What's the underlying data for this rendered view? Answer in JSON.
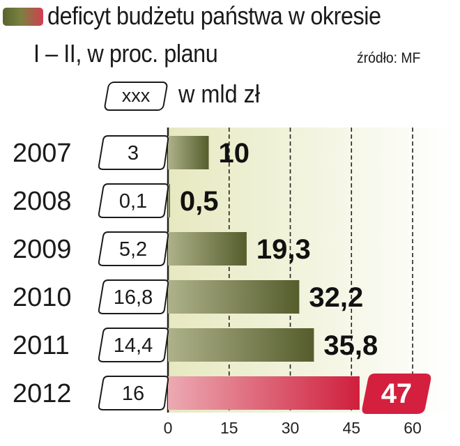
{
  "title_line1": "deficyt budżetu państwa w okresie",
  "title_line2": "I – II, w proc. planu",
  "source": "źródło: MF",
  "legend": {
    "box_label": "xxx",
    "unit": "w mld zł"
  },
  "colors": {
    "bar_normal": "#6b7238",
    "bar_highlight": "#d4203e",
    "plot_bg": "#eef0d6"
  },
  "chart_data": {
    "type": "bar",
    "orientation": "horizontal",
    "categories": [
      "2007",
      "2008",
      "2009",
      "2010",
      "2011",
      "2012"
    ],
    "values": [
      10,
      0.5,
      19.3,
      32.2,
      35.8,
      47
    ],
    "value_labels": [
      "10",
      "0,5",
      "19,3",
      "32,2",
      "35,8",
      "47"
    ],
    "amounts_bln_pln": [
      "3",
      "0,1",
      "5,2",
      "16,8",
      "14,4",
      "16"
    ],
    "highlight": "2012",
    "xlim": [
      0,
      60
    ],
    "xticks": [
      0,
      15,
      30,
      45,
      60
    ],
    "grid": "dashed vertical"
  }
}
